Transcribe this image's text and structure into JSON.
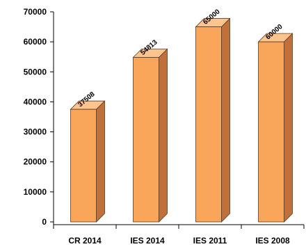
{
  "chart_data": {
    "type": "bar",
    "style": "3d-column",
    "categories": [
      "CR 2014",
      "IES 2014",
      "IES 2011",
      "IES 2008"
    ],
    "values": [
      37508,
      54813,
      65000,
      60000
    ],
    "data_labels": [
      "37508",
      "54813",
      "65000",
      "60000"
    ],
    "title": "",
    "xlabel": "",
    "ylabel": "",
    "ylim": [
      0,
      70000
    ],
    "yticks": [
      0,
      10000,
      20000,
      30000,
      40000,
      50000,
      60000,
      70000
    ],
    "ytick_labels": [
      "0",
      "10000",
      "20000",
      "30000",
      "40000",
      "50000",
      "60000",
      "70000"
    ],
    "grid": false,
    "legend": "none",
    "colors": {
      "bar_front": "#F9A65A",
      "bar_side": "#C0703A",
      "bar_top": "#FCC48E",
      "bar_outline": "#5A3A1E",
      "axis": "#000000"
    }
  }
}
